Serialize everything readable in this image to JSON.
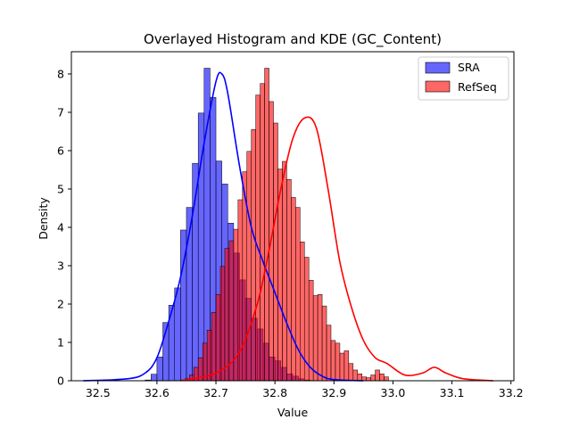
{
  "chart_data": {
    "type": "bar",
    "title": "Overlayed Histogram and KDE (GC_Content)",
    "xlabel": "Value",
    "ylabel": "Density",
    "xlim": [
      32.455,
      33.205
    ],
    "ylim": [
      0,
      8.58
    ],
    "xticks": [
      "32.5",
      "32.6",
      "32.7",
      "32.8",
      "32.9",
      "33.0",
      "33.1",
      "33.2"
    ],
    "yticks": [
      "0",
      "1",
      "2",
      "3",
      "4",
      "5",
      "6",
      "7",
      "8"
    ],
    "legend_position": "top-right",
    "series": [
      {
        "name": "SRA",
        "color": "#0000ff",
        "bin_start": 32.58,
        "bin_width": 0.01,
        "values": [
          0.02,
          0.17,
          0.62,
          1.52,
          1.97,
          2.42,
          3.93,
          4.52,
          5.67,
          6.98,
          8.15,
          7.39,
          5.73,
          5.13,
          4.11,
          3.33,
          2.63,
          2.15,
          1.63,
          1.35,
          0.98,
          0.62,
          0.52,
          0.35,
          0.18,
          0.12,
          0.05,
          0.02
        ],
        "kde": {
          "x": [
            32.475,
            32.55,
            32.58,
            32.6,
            32.62,
            32.64,
            32.66,
            32.68,
            32.7,
            32.71,
            32.72,
            32.74,
            32.76,
            32.78,
            32.8,
            32.82,
            32.84,
            32.86,
            32.88,
            32.9,
            32.95
          ],
          "y": [
            0.0,
            0.05,
            0.2,
            0.6,
            1.55,
            2.7,
            4.3,
            6.2,
            7.8,
            8.0,
            7.5,
            5.6,
            4.0,
            3.1,
            2.3,
            1.5,
            0.8,
            0.35,
            0.12,
            0.03,
            0.0
          ]
        }
      },
      {
        "name": "RefSeq",
        "color": "#ff0000",
        "bin_start": 32.64,
        "bin_width": 0.0075,
        "values": [
          0.02,
          0.05,
          0.15,
          0.35,
          0.6,
          0.98,
          1.32,
          1.78,
          2.25,
          2.98,
          3.45,
          3.65,
          3.95,
          4.72,
          5.45,
          5.98,
          6.55,
          7.45,
          7.75,
          8.15,
          7.28,
          6.72,
          5.52,
          5.72,
          5.25,
          4.78,
          4.52,
          3.62,
          3.22,
          2.62,
          2.22,
          2.25,
          1.95,
          1.45,
          1.05,
          0.98,
          0.72,
          0.78,
          0.45,
          0.28,
          0.18,
          0.1,
          0.08,
          0.15,
          0.28,
          0.18,
          0.1
        ],
        "kde": {
          "x": [
            32.64,
            32.7,
            32.74,
            32.77,
            32.79,
            32.81,
            32.83,
            32.85,
            32.87,
            32.89,
            32.91,
            32.93,
            32.95,
            32.97,
            32.99,
            33.02,
            33.05,
            33.07,
            33.09,
            33.12,
            33.17
          ],
          "y": [
            0.0,
            0.2,
            0.75,
            2.0,
            3.4,
            5.0,
            6.3,
            6.85,
            6.6,
            5.0,
            3.1,
            1.9,
            1.05,
            0.6,
            0.45,
            0.15,
            0.2,
            0.35,
            0.2,
            0.05,
            0.0
          ]
        }
      }
    ]
  }
}
